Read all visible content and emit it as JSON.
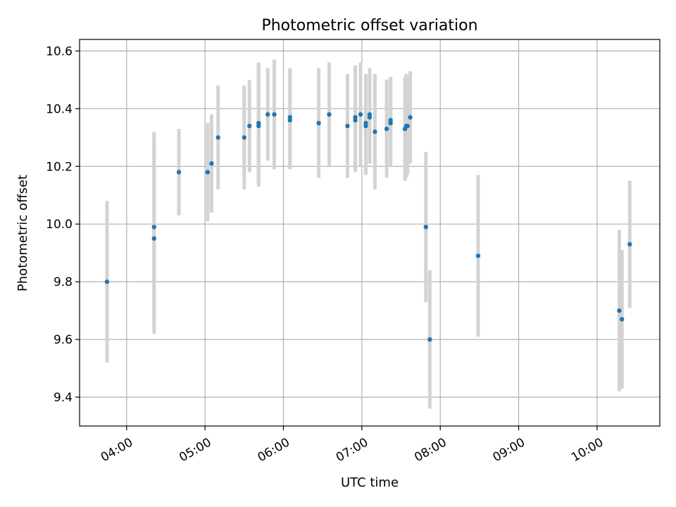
{
  "chart_data": {
    "type": "scatter",
    "title": "Photometric offset variation",
    "xlabel": "UTC time",
    "ylabel": "Photometric offset",
    "grid": true,
    "xlim": [
      "03:24",
      "10:48"
    ],
    "ylim": [
      9.3,
      10.64
    ],
    "x_ticks": [
      "04:00",
      "05:00",
      "06:00",
      "07:00",
      "08:00",
      "09:00",
      "10:00"
    ],
    "y_ticks": [
      "9.4",
      "9.6",
      "9.8",
      "10.0",
      "10.2",
      "10.4",
      "10.6"
    ],
    "colors": {
      "point": "#1f77b4",
      "error_bar": "#d3d3d3",
      "grid": "#b0b0b0"
    },
    "series": [
      {
        "points": [
          {
            "x": "03:45",
            "y": 9.8,
            "err": 0.28
          },
          {
            "x": "04:21",
            "y": 9.99,
            "err": 0.33
          },
          {
            "x": "04:21",
            "y": 9.95,
            "err": 0.33
          },
          {
            "x": "04:40",
            "y": 10.18,
            "err": 0.15
          },
          {
            "x": "05:02",
            "y": 10.18,
            "err": 0.17
          },
          {
            "x": "05:05",
            "y": 10.21,
            "err": 0.17
          },
          {
            "x": "05:10",
            "y": 10.3,
            "err": 0.18
          },
          {
            "x": "05:30",
            "y": 10.3,
            "err": 0.18
          },
          {
            "x": "05:34",
            "y": 10.34,
            "err": 0.16
          },
          {
            "x": "05:41",
            "y": 10.34,
            "err": 0.21
          },
          {
            "x": "05:41",
            "y": 10.35,
            "err": 0.21
          },
          {
            "x": "05:48",
            "y": 10.38,
            "err": 0.16
          },
          {
            "x": "05:53",
            "y": 10.38,
            "err": 0.19
          },
          {
            "x": "06:05",
            "y": 10.36,
            "err": 0.17
          },
          {
            "x": "06:05",
            "y": 10.37,
            "err": 0.17
          },
          {
            "x": "06:27",
            "y": 10.35,
            "err": 0.19
          },
          {
            "x": "06:35",
            "y": 10.38,
            "err": 0.18
          },
          {
            "x": "06:49",
            "y": 10.34,
            "err": 0.18
          },
          {
            "x": "06:55",
            "y": 10.36,
            "err": 0.18
          },
          {
            "x": "06:55",
            "y": 10.37,
            "err": 0.18
          },
          {
            "x": "06:59",
            "y": 10.38,
            "err": 0.18
          },
          {
            "x": "07:03",
            "y": 10.34,
            "err": 0.17
          },
          {
            "x": "07:03",
            "y": 10.35,
            "err": 0.17
          },
          {
            "x": "07:06",
            "y": 10.38,
            "err": 0.16
          },
          {
            "x": "07:06",
            "y": 10.37,
            "err": 0.16
          },
          {
            "x": "07:10",
            "y": 10.32,
            "err": 0.2
          },
          {
            "x": "07:19",
            "y": 10.33,
            "err": 0.17
          },
          {
            "x": "07:22",
            "y": 10.35,
            "err": 0.15
          },
          {
            "x": "07:22",
            "y": 10.36,
            "err": 0.15
          },
          {
            "x": "07:33",
            "y": 10.33,
            "err": 0.18
          },
          {
            "x": "07:34",
            "y": 10.34,
            "err": 0.18
          },
          {
            "x": "07:35",
            "y": 10.34,
            "err": 0.17
          },
          {
            "x": "07:37",
            "y": 10.37,
            "err": 0.16
          },
          {
            "x": "07:49",
            "y": 9.99,
            "err": 0.26
          },
          {
            "x": "07:52",
            "y": 9.6,
            "err": 0.24
          },
          {
            "x": "08:29",
            "y": 9.89,
            "err": 0.28
          },
          {
            "x": "10:17",
            "y": 9.7,
            "err": 0.28
          },
          {
            "x": "10:19",
            "y": 9.67,
            "err": 0.24
          },
          {
            "x": "10:25",
            "y": 9.93,
            "err": 0.22
          }
        ]
      }
    ]
  }
}
